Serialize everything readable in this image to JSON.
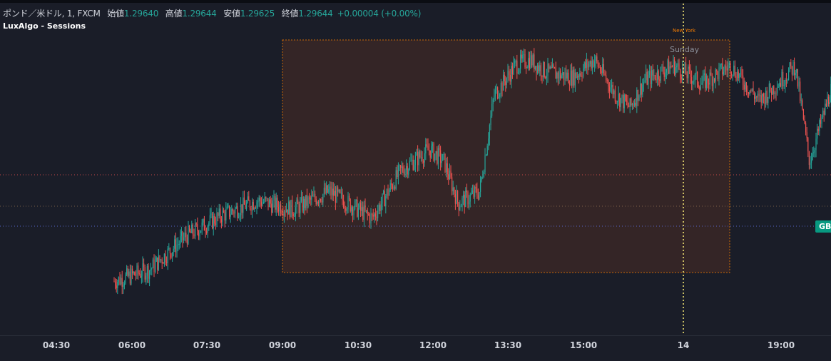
{
  "legend": {
    "symbol": "ポンド／米ドル, 1, FXCM",
    "open_label": "始値",
    "open": "1.29640",
    "high_label": "高値",
    "high": "1.29644",
    "low_label": "安値",
    "low": "1.29625",
    "close_label": "終値",
    "close": "1.29644",
    "change": "+0.00004 (+0.00%)",
    "indicator": "LuxAlgo - Sessions"
  },
  "price_tag": "GBP",
  "session": {
    "name": "New York",
    "day": "Sunday"
  },
  "colors": {
    "up": "#26a69a",
    "down": "#ef5350",
    "session_box": "#f57c00",
    "today_line": "#fff176"
  },
  "chart_data": {
    "type": "candlestick",
    "x_ticks": [
      "04:30",
      "06:00",
      "07:30",
      "09:00",
      "10:30",
      "12:00",
      "13:30",
      "15:00",
      "14",
      "19:00"
    ],
    "close_series_anchors": [
      [
        0,
        1.2888
      ],
      [
        0.05,
        1.2892
      ],
      [
        0.1,
        1.2903
      ],
      [
        0.15,
        1.291
      ],
      [
        0.2,
        1.2915
      ],
      [
        0.25,
        1.2912
      ],
      [
        0.3,
        1.2918
      ],
      [
        0.36,
        1.2909
      ],
      [
        0.4,
        1.2925
      ],
      [
        0.44,
        1.2932
      ],
      [
        0.46,
        1.2928
      ],
      [
        0.48,
        1.2914
      ],
      [
        0.51,
        1.2918
      ],
      [
        0.53,
        1.295
      ],
      [
        0.56,
        1.296
      ],
      [
        0.58,
        1.2962
      ],
      [
        0.6,
        1.2958
      ],
      [
        0.64,
        1.2956
      ],
      [
        0.67,
        1.2962
      ],
      [
        0.7,
        1.295
      ],
      [
        0.72,
        1.2946
      ],
      [
        0.74,
        1.2955
      ],
      [
        0.78,
        1.296
      ],
      [
        0.82,
        1.2954
      ],
      [
        0.86,
        1.296
      ],
      [
        0.9,
        1.2948
      ],
      [
        0.93,
        1.2955
      ],
      [
        0.95,
        1.296
      ],
      [
        0.97,
        1.2928
      ],
      [
        1.0,
        1.2952
      ]
    ]
  }
}
